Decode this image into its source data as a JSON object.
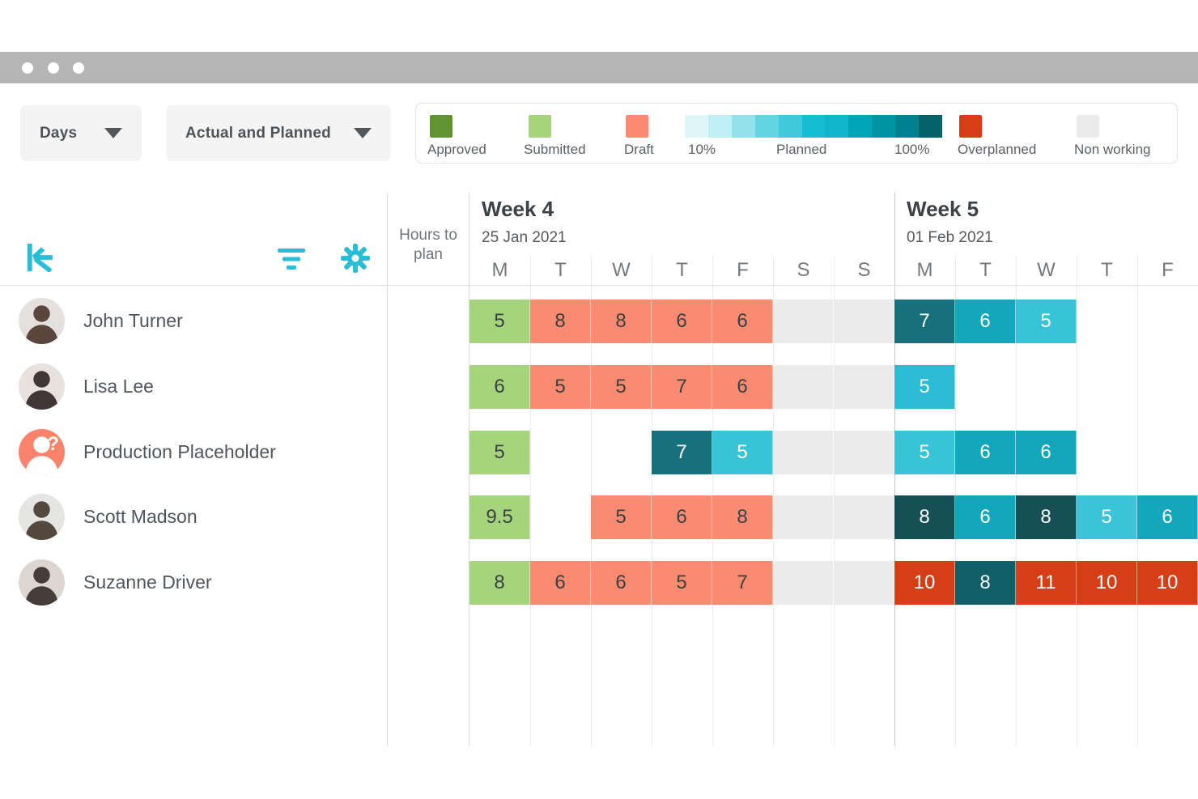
{
  "window": {
    "dot_count": 3
  },
  "toolbar": {
    "timescale": {
      "value": "Days"
    },
    "mode": {
      "value": "Actual and Planned"
    }
  },
  "legend": {
    "approved": {
      "label": "Approved",
      "color": "#5f9431"
    },
    "submitted": {
      "label": "Submitted",
      "color": "#a6d47c"
    },
    "draft": {
      "label": "Draft",
      "color": "#f98b70"
    },
    "gradient": {
      "start_label": "10%",
      "mid_label": "Planned",
      "end_label": "100%",
      "colors": [
        "#dff6f9",
        "#bfeef3",
        "#92e2ec",
        "#62d4e2",
        "#3fc9da",
        "#16bccf",
        "#10b5c9",
        "#00a5b8",
        "#0095a5",
        "#00818f",
        "#05616a"
      ]
    },
    "overplanned": {
      "label": "Overplanned",
      "color": "#d63f15"
    },
    "nonworking": {
      "label": "Non working",
      "color": "#ebebeb"
    }
  },
  "grid_header": {
    "hours_to_plan": "Hours to plan"
  },
  "weeks": [
    {
      "label": "Week 4",
      "date": "25 Jan 2021",
      "days": [
        "M",
        "T",
        "W",
        "T",
        "F",
        "S",
        "S"
      ]
    },
    {
      "label": "Week 5",
      "date": "01 Feb 2021",
      "days": [
        "M",
        "T",
        "W",
        "T",
        "F"
      ]
    }
  ],
  "colors": {
    "accent": "#29bdd7",
    "cell_text_dark": "#3c4043",
    "cell_text_light": "#ffffff",
    "nonworking": "#ebebeb",
    "overplanned": "#d63f15"
  },
  "rows": [
    {
      "name": "John Turner",
      "avatar": {
        "type": "photo",
        "bg": "#e3e0de",
        "fg": "#5a463c"
      },
      "cells": [
        {
          "v": "5",
          "t": "submitted"
        },
        {
          "v": "8",
          "t": "draft"
        },
        {
          "v": "8",
          "t": "draft"
        },
        {
          "v": "6",
          "t": "draft"
        },
        {
          "v": "6",
          "t": "draft"
        },
        {
          "t": "nw"
        },
        {
          "t": "nw"
        },
        {
          "v": "7",
          "t": "planned",
          "c": "#16717d"
        },
        {
          "v": "6",
          "t": "planned",
          "c": "#14a6bb"
        },
        {
          "v": "5",
          "t": "planned",
          "c": "#38c3d8"
        },
        {
          "t": "empty"
        },
        {
          "t": "empty"
        }
      ]
    },
    {
      "name": "Lisa Lee",
      "avatar": {
        "type": "photo",
        "bg": "#e8e2df",
        "fg": "#433636"
      },
      "cells": [
        {
          "v": "6",
          "t": "submitted"
        },
        {
          "v": "5",
          "t": "draft"
        },
        {
          "v": "5",
          "t": "draft"
        },
        {
          "v": "7",
          "t": "draft"
        },
        {
          "v": "6",
          "t": "draft"
        },
        {
          "t": "nw"
        },
        {
          "t": "nw"
        },
        {
          "v": "5",
          "t": "planned",
          "c": "#2bbcd4"
        },
        {
          "t": "empty"
        },
        {
          "t": "empty"
        },
        {
          "t": "empty"
        },
        {
          "t": "empty"
        }
      ]
    },
    {
      "name": "Production Placeholder",
      "avatar": {
        "type": "placeholder",
        "bg": "#f8836a",
        "fg": "#ffffff",
        "mark": "?"
      },
      "cells": [
        {
          "v": "5",
          "t": "submitted"
        },
        {
          "t": "empty"
        },
        {
          "t": "empty"
        },
        {
          "v": "7",
          "t": "planned",
          "c": "#16717d"
        },
        {
          "v": "5",
          "t": "planned",
          "c": "#38c3d8"
        },
        {
          "t": "nw"
        },
        {
          "t": "nw"
        },
        {
          "v": "5",
          "t": "planned",
          "c": "#38c3d8"
        },
        {
          "v": "6",
          "t": "planned",
          "c": "#14a6bb"
        },
        {
          "v": "6",
          "t": "planned",
          "c": "#14a6bb"
        },
        {
          "t": "empty"
        },
        {
          "t": "empty"
        }
      ]
    },
    {
      "name": "Scott Madson",
      "avatar": {
        "type": "photo",
        "bg": "#e5e5e3",
        "fg": "#55483e"
      },
      "cells": [
        {
          "v": "9.5",
          "t": "submitted"
        },
        {
          "t": "empty"
        },
        {
          "v": "5",
          "t": "draft"
        },
        {
          "v": "6",
          "t": "draft"
        },
        {
          "v": "8",
          "t": "draft"
        },
        {
          "t": "nw"
        },
        {
          "t": "nw"
        },
        {
          "v": "8",
          "t": "planned",
          "c": "#174f57"
        },
        {
          "v": "6",
          "t": "planned",
          "c": "#14a6bb"
        },
        {
          "v": "8",
          "t": "planned",
          "c": "#174f57"
        },
        {
          "v": "5",
          "t": "planned",
          "c": "#3cc5d9"
        },
        {
          "v": "6",
          "t": "planned",
          "c": "#14a6bb"
        }
      ]
    },
    {
      "name": "Suzanne Driver",
      "avatar": {
        "type": "photo",
        "bg": "#ddd6d0",
        "fg": "#463c38"
      },
      "cells": [
        {
          "v": "8",
          "t": "submitted"
        },
        {
          "v": "6",
          "t": "draft"
        },
        {
          "v": "6",
          "t": "draft"
        },
        {
          "v": "5",
          "t": "draft"
        },
        {
          "v": "7",
          "t": "draft"
        },
        {
          "t": "nw"
        },
        {
          "t": "nw"
        },
        {
          "v": "10",
          "t": "over"
        },
        {
          "v": "8",
          "t": "planned",
          "c": "#0f5f66"
        },
        {
          "v": "11",
          "t": "over"
        },
        {
          "v": "10",
          "t": "over"
        },
        {
          "v": "10",
          "t": "over"
        }
      ]
    }
  ]
}
